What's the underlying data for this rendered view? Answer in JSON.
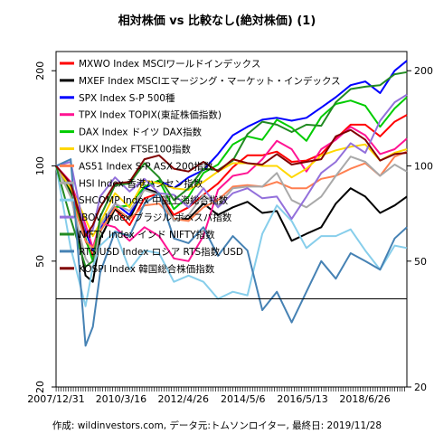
{
  "chart_data": {
    "type": "line",
    "title": "相対株価 vs 比較なし(絶対株価) (1)",
    "caption": "作成: wildinvestors.com, データ元:トムソンロイター, 最終日: 2019/11/28",
    "x_tick_labels": [
      "2007/12/31",
      "2010/3/16",
      "2012/4/26",
      "2014/5/6",
      "2016/5/13",
      "2018/6/26"
    ],
    "x_ticks": [
      "2007-12-31",
      "2010-03-16",
      "2012-04-26",
      "2014-05-06",
      "2016-05-13",
      "2018-06-26"
    ],
    "x_range": [
      "2007-12-31",
      "2019-11-28"
    ],
    "y_scale": "log",
    "ylim": [
      20,
      230
    ],
    "y_ticks": [
      20,
      50,
      100,
      200
    ],
    "reference_line": 38,
    "legend_position": "top-left",
    "x": [
      "2007-12-31",
      "2008-06-30",
      "2008-12-31",
      "2009-03-31",
      "2009-06-30",
      "2009-12-31",
      "2010-06-30",
      "2010-12-31",
      "2011-06-30",
      "2011-12-31",
      "2012-06-30",
      "2012-12-31",
      "2013-06-30",
      "2013-12-31",
      "2014-06-30",
      "2014-12-31",
      "2015-06-30",
      "2015-12-31",
      "2016-06-30",
      "2016-12-31",
      "2017-06-30",
      "2017-12-31",
      "2018-06-30",
      "2018-12-31",
      "2019-06-30",
      "2019-11-28"
    ],
    "series": [
      {
        "name": "MXWO Index MSCIワールドインデックス",
        "color": "#ff0000",
        "values": [
          100,
          87,
          58,
          52,
          63,
          73,
          65,
          79,
          82,
          70,
          74,
          81,
          88,
          99,
          108,
          108,
          111,
          103,
          104,
          109,
          122,
          135,
          135,
          124,
          138,
          145
        ]
      },
      {
        "name": "MXEF Index MSCIエマージング・マーケット・インデックス",
        "color": "#000000",
        "values": [
          100,
          83,
          45,
          43,
          59,
          73,
          68,
          85,
          82,
          68,
          68,
          76,
          70,
          74,
          77,
          71,
          72,
          58,
          61,
          64,
          76,
          85,
          80,
          71,
          75,
          80
        ]
      },
      {
        "name": "SPX Index S-P 500種",
        "color": "#0000ff",
        "values": [
          100,
          87,
          62,
          54,
          63,
          76,
          70,
          85,
          90,
          85,
          92,
          97,
          109,
          125,
          133,
          140,
          142,
          139,
          142,
          153,
          165,
          180,
          185,
          170,
          200,
          215
        ]
      },
      {
        "name": "TPX Index TOPIX(東証株価指数)",
        "color": "#ff1493",
        "values": [
          100,
          89,
          65,
          55,
          66,
          64,
          58,
          64,
          60,
          51,
          50,
          60,
          84,
          93,
          95,
          105,
          120,
          113,
          96,
          113,
          121,
          133,
          125,
          109,
          113,
          122
        ]
      },
      {
        "name": "DAX Index ドイツ DAX指数",
        "color": "#00cc00",
        "values": [
          100,
          81,
          59,
          50,
          62,
          74,
          75,
          86,
          90,
          73,
          80,
          95,
          101,
          117,
          124,
          121,
          140,
          132,
          120,
          143,
          157,
          161,
          155,
          133,
          152,
          165
        ]
      },
      {
        "name": "UKX Index FTSE100指数",
        "color": "#ffd700",
        "values": [
          100,
          85,
          68,
          60,
          66,
          82,
          74,
          90,
          88,
          85,
          84,
          89,
          96,
          102,
          102,
          100,
          100,
          92,
          98,
          108,
          112,
          115,
          117,
          104,
          110,
          113
        ]
      },
      {
        "name": "AS51 Index S-P ASX 200指数",
        "color": "#ff7f50",
        "values": [
          100,
          80,
          58,
          55,
          62,
          74,
          68,
          75,
          76,
          68,
          67,
          74,
          78,
          86,
          87,
          86,
          89,
          85,
          85,
          91,
          93,
          98,
          102,
          93,
          107,
          111
        ]
      },
      {
        "name": "HSI Index 香港ハンセン指数",
        "color": "#a9a9a9",
        "values": [
          100,
          80,
          51,
          47,
          65,
          76,
          72,
          84,
          81,
          67,
          70,
          81,
          75,
          85,
          86,
          86,
          95,
          78,
          74,
          80,
          93,
          107,
          103,
          93,
          101,
          96
        ]
      },
      {
        "name": "SHCOMP Index 中国上海総合指数",
        "color": "#87ceeb",
        "values": [
          100,
          55,
          36,
          48,
          56,
          62,
          47,
          54,
          53,
          43,
          45,
          43,
          38,
          40,
          39,
          61,
          75,
          67,
          55,
          60,
          60,
          63,
          54,
          47,
          56,
          55
        ]
      },
      {
        "name": "IBOV Index ブラジル ボベスパ指数",
        "color": "#9370db",
        "values": [
          100,
          103,
          60,
          63,
          80,
          92,
          83,
          91,
          82,
          81,
          74,
          85,
          74,
          82,
          85,
          79,
          80,
          68,
          80,
          95,
          103,
          118,
          110,
          139,
          159,
          168
        ]
      },
      {
        "name": "NIFTY Index インド NIFTY指数",
        "color": "#228b22",
        "values": [
          100,
          68,
          48,
          50,
          69,
          87,
          88,
          102,
          92,
          78,
          85,
          98,
          97,
          104,
          126,
          138,
          135,
          128,
          135,
          134,
          159,
          175,
          178,
          180,
          195,
          198
        ]
      },
      {
        "name": "RTSIUSD Index ロシア RTS指数 USD",
        "color": "#4682b4",
        "values": [
          100,
          105,
          27,
          31,
          46,
          62,
          60,
          76,
          82,
          59,
          57,
          64,
          52,
          60,
          54,
          35,
          40,
          32,
          40,
          50,
          44,
          53,
          50,
          47,
          59,
          64
        ]
      },
      {
        "name": "KOSPI Index 韓国総合株価指数",
        "color": "#800000",
        "values": [
          100,
          88,
          60,
          65,
          74,
          88,
          89,
          105,
          108,
          98,
          96,
          103,
          96,
          105,
          102,
          101,
          109,
          101,
          103,
          105,
          124,
          130,
          121,
          104,
          109,
          110
        ]
      }
    ]
  }
}
